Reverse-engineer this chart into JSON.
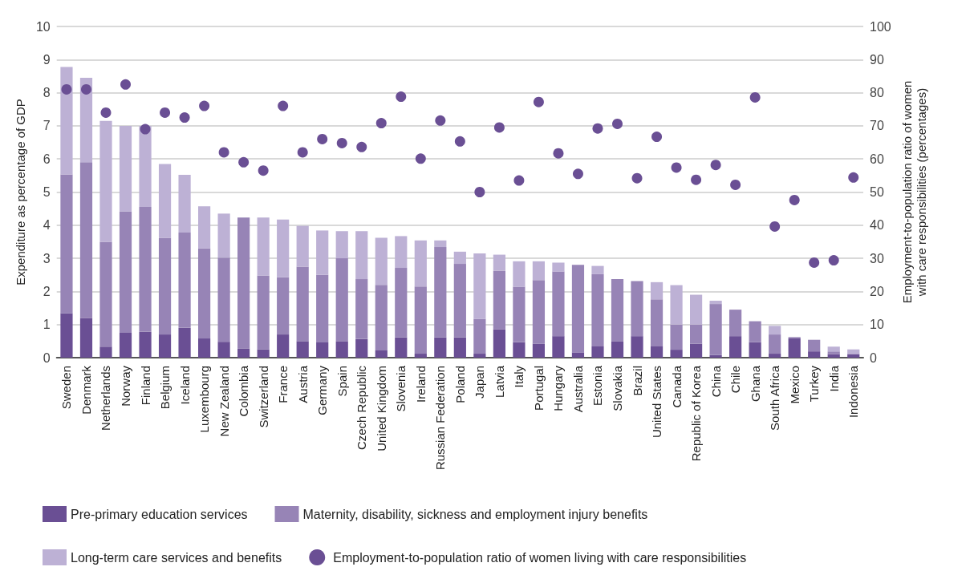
{
  "chart_data": {
    "type": "bar",
    "stacked": true,
    "ylabel": "Expenditure as percentage of GDP",
    "y2label": "Employment-to-population ratio of women\nwith care responsibilities (percentages)",
    "categories": [
      "Sweden",
      "Denmark",
      "Netherlands",
      "Norway",
      "Finland",
      "Belgium",
      "Iceland",
      "Luxembourg",
      "New Zealand",
      "Colombia",
      "Switzerland",
      "France",
      "Austria",
      "Germany",
      "Spain",
      "Czech Republic",
      "United Kingdom",
      "Slovenia",
      "Ireland",
      "Russian Federation",
      "Poland",
      "Japan",
      "Latvia",
      "Italy",
      "Portugal",
      "Hungary",
      "Australia",
      "Estonia",
      "Slovakia",
      "Brazil",
      "United States",
      "Canada",
      "Republic of Korea",
      "China",
      "Chile",
      "Ghana",
      "South Africa",
      "Mexico",
      "Turkey",
      "India",
      "Indonesia"
    ],
    "series": [
      {
        "name": "Pre-primary education services",
        "color": "#6a4f94",
        "values": [
          1.34,
          1.2,
          0.33,
          0.75,
          0.78,
          0.7,
          0.9,
          0.58,
          0.48,
          0.28,
          0.25,
          0.7,
          0.5,
          0.46,
          0.5,
          0.56,
          0.22,
          0.61,
          0.12,
          0.61,
          0.61,
          0.12,
          0.86,
          0.47,
          0.42,
          0.65,
          0.16,
          0.34,
          0.5,
          0.65,
          0.34,
          0.24,
          0.42,
          0.08,
          0.65,
          0.47,
          0.12,
          0.58,
          0.19,
          0.11,
          0.11
        ]
      },
      {
        "name": "Maternity, disability, sickness and employment injury benefits",
        "color": "#9784b6",
        "values": [
          4.19,
          4.7,
          3.17,
          3.67,
          3.77,
          2.92,
          2.88,
          2.72,
          2.54,
          3.95,
          2.23,
          1.73,
          2.25,
          2.04,
          2.5,
          1.81,
          1.98,
          2.1,
          2.03,
          2.73,
          2.22,
          1.05,
          1.77,
          1.67,
          1.92,
          1.95,
          2.64,
          2.18,
          1.87,
          1.66,
          1.42,
          0.76,
          0.58,
          1.54,
          0.8,
          0.63,
          0.58,
          0.04,
          0.35,
          0.08,
          0
        ]
      },
      {
        "name": "Long-term care services and benefits",
        "color": "#bdb1d5",
        "values": [
          3.25,
          2.55,
          3.65,
          2.58,
          2.45,
          2.23,
          1.74,
          1.27,
          1.33,
          0,
          1.75,
          1.74,
          1.23,
          1.34,
          0.82,
          1.45,
          1.42,
          0.96,
          1.39,
          0.2,
          0.37,
          1.98,
          0.48,
          0.77,
          0.57,
          0.27,
          0,
          0.25,
          0,
          0,
          0.52,
          1.19,
          0.9,
          0.1,
          0,
          0,
          0.26,
          0,
          0,
          0.14,
          0.14
        ]
      },
      {
        "name": "Employment-to-population ratio of women living with care responsibilities",
        "type": "scatter",
        "axis": "y2",
        "color": "#6a4f94",
        "values": [
          81,
          81,
          74,
          82.5,
          69,
          74,
          72.5,
          76,
          62,
          59,
          56.5,
          76,
          62,
          66,
          64.8,
          63.6,
          70.8,
          78.8,
          60.1,
          71.6,
          65.3,
          50,
          69.5,
          53.5,
          77.2,
          61.7,
          55.5,
          69.2,
          70.6,
          54.2,
          66.7,
          57.4,
          53.7,
          58.2,
          52.2,
          78.6,
          39.6,
          47.6,
          28.7,
          29.4,
          54.4
        ]
      }
    ],
    "ylim": [
      0,
      10
    ],
    "yticks": [
      0,
      1,
      2,
      3,
      4,
      5,
      6,
      7,
      8,
      9,
      10
    ],
    "y2lim": [
      0,
      100
    ],
    "y2ticks": [
      0,
      10,
      20,
      30,
      40,
      50,
      60,
      70,
      80,
      90,
      100
    ],
    "grid": "y",
    "legend": "bottom",
    "marker": "circle"
  }
}
